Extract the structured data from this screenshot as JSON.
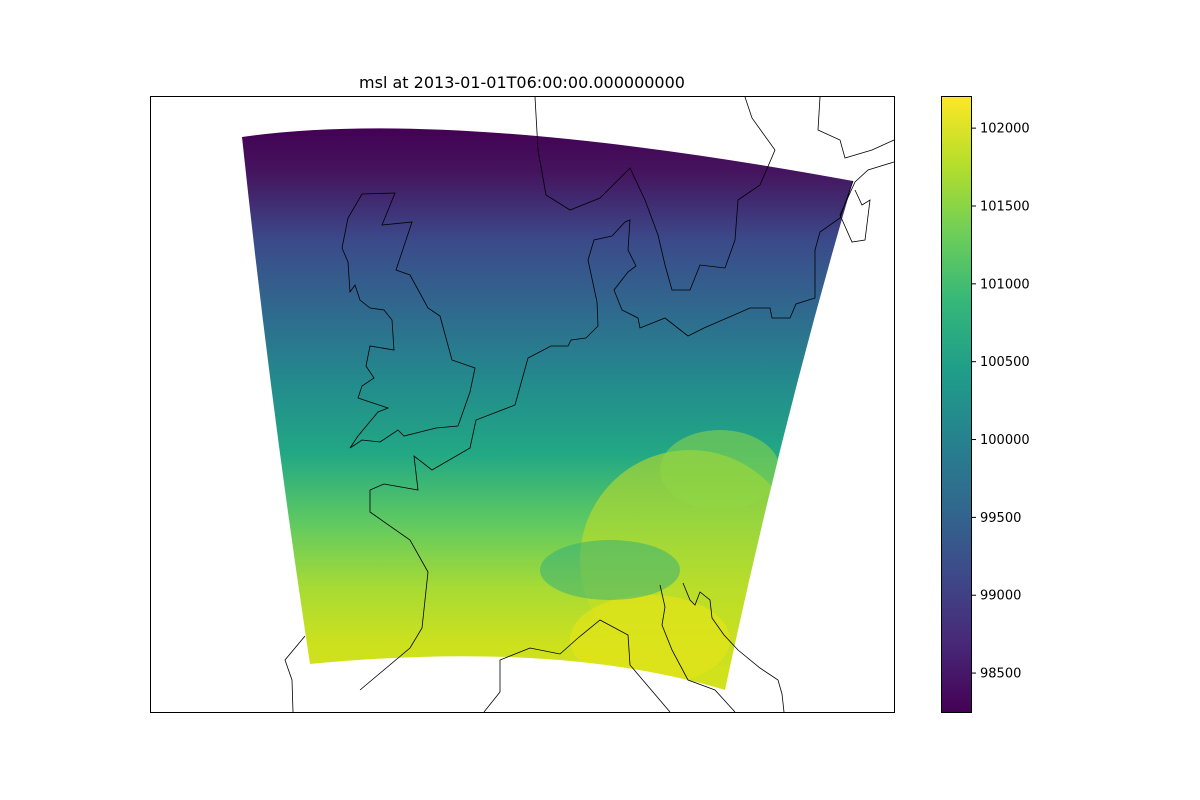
{
  "chart_data": {
    "type": "heatmap",
    "title": "msl at 2013-01-01T06:00:00.000000000",
    "xlabel": "",
    "ylabel": "",
    "variable": "msl",
    "colormap": "viridis",
    "colorbar": {
      "range": [
        98250,
        102200
      ],
      "ticks": [
        98500,
        99000,
        99500,
        100000,
        100500,
        101000,
        101500,
        102000
      ],
      "tick_labels": [
        "98500",
        "99000",
        "99500",
        "100000",
        "100500",
        "101000",
        "101500",
        "102000"
      ],
      "placement": "right"
    },
    "field": {
      "description_of_gradient": "low pressure in the north, rising toward the south",
      "north_min": 98300,
      "central_value": 100300,
      "south_max": 102100
    },
    "grid": false,
    "legend": "none"
  }
}
